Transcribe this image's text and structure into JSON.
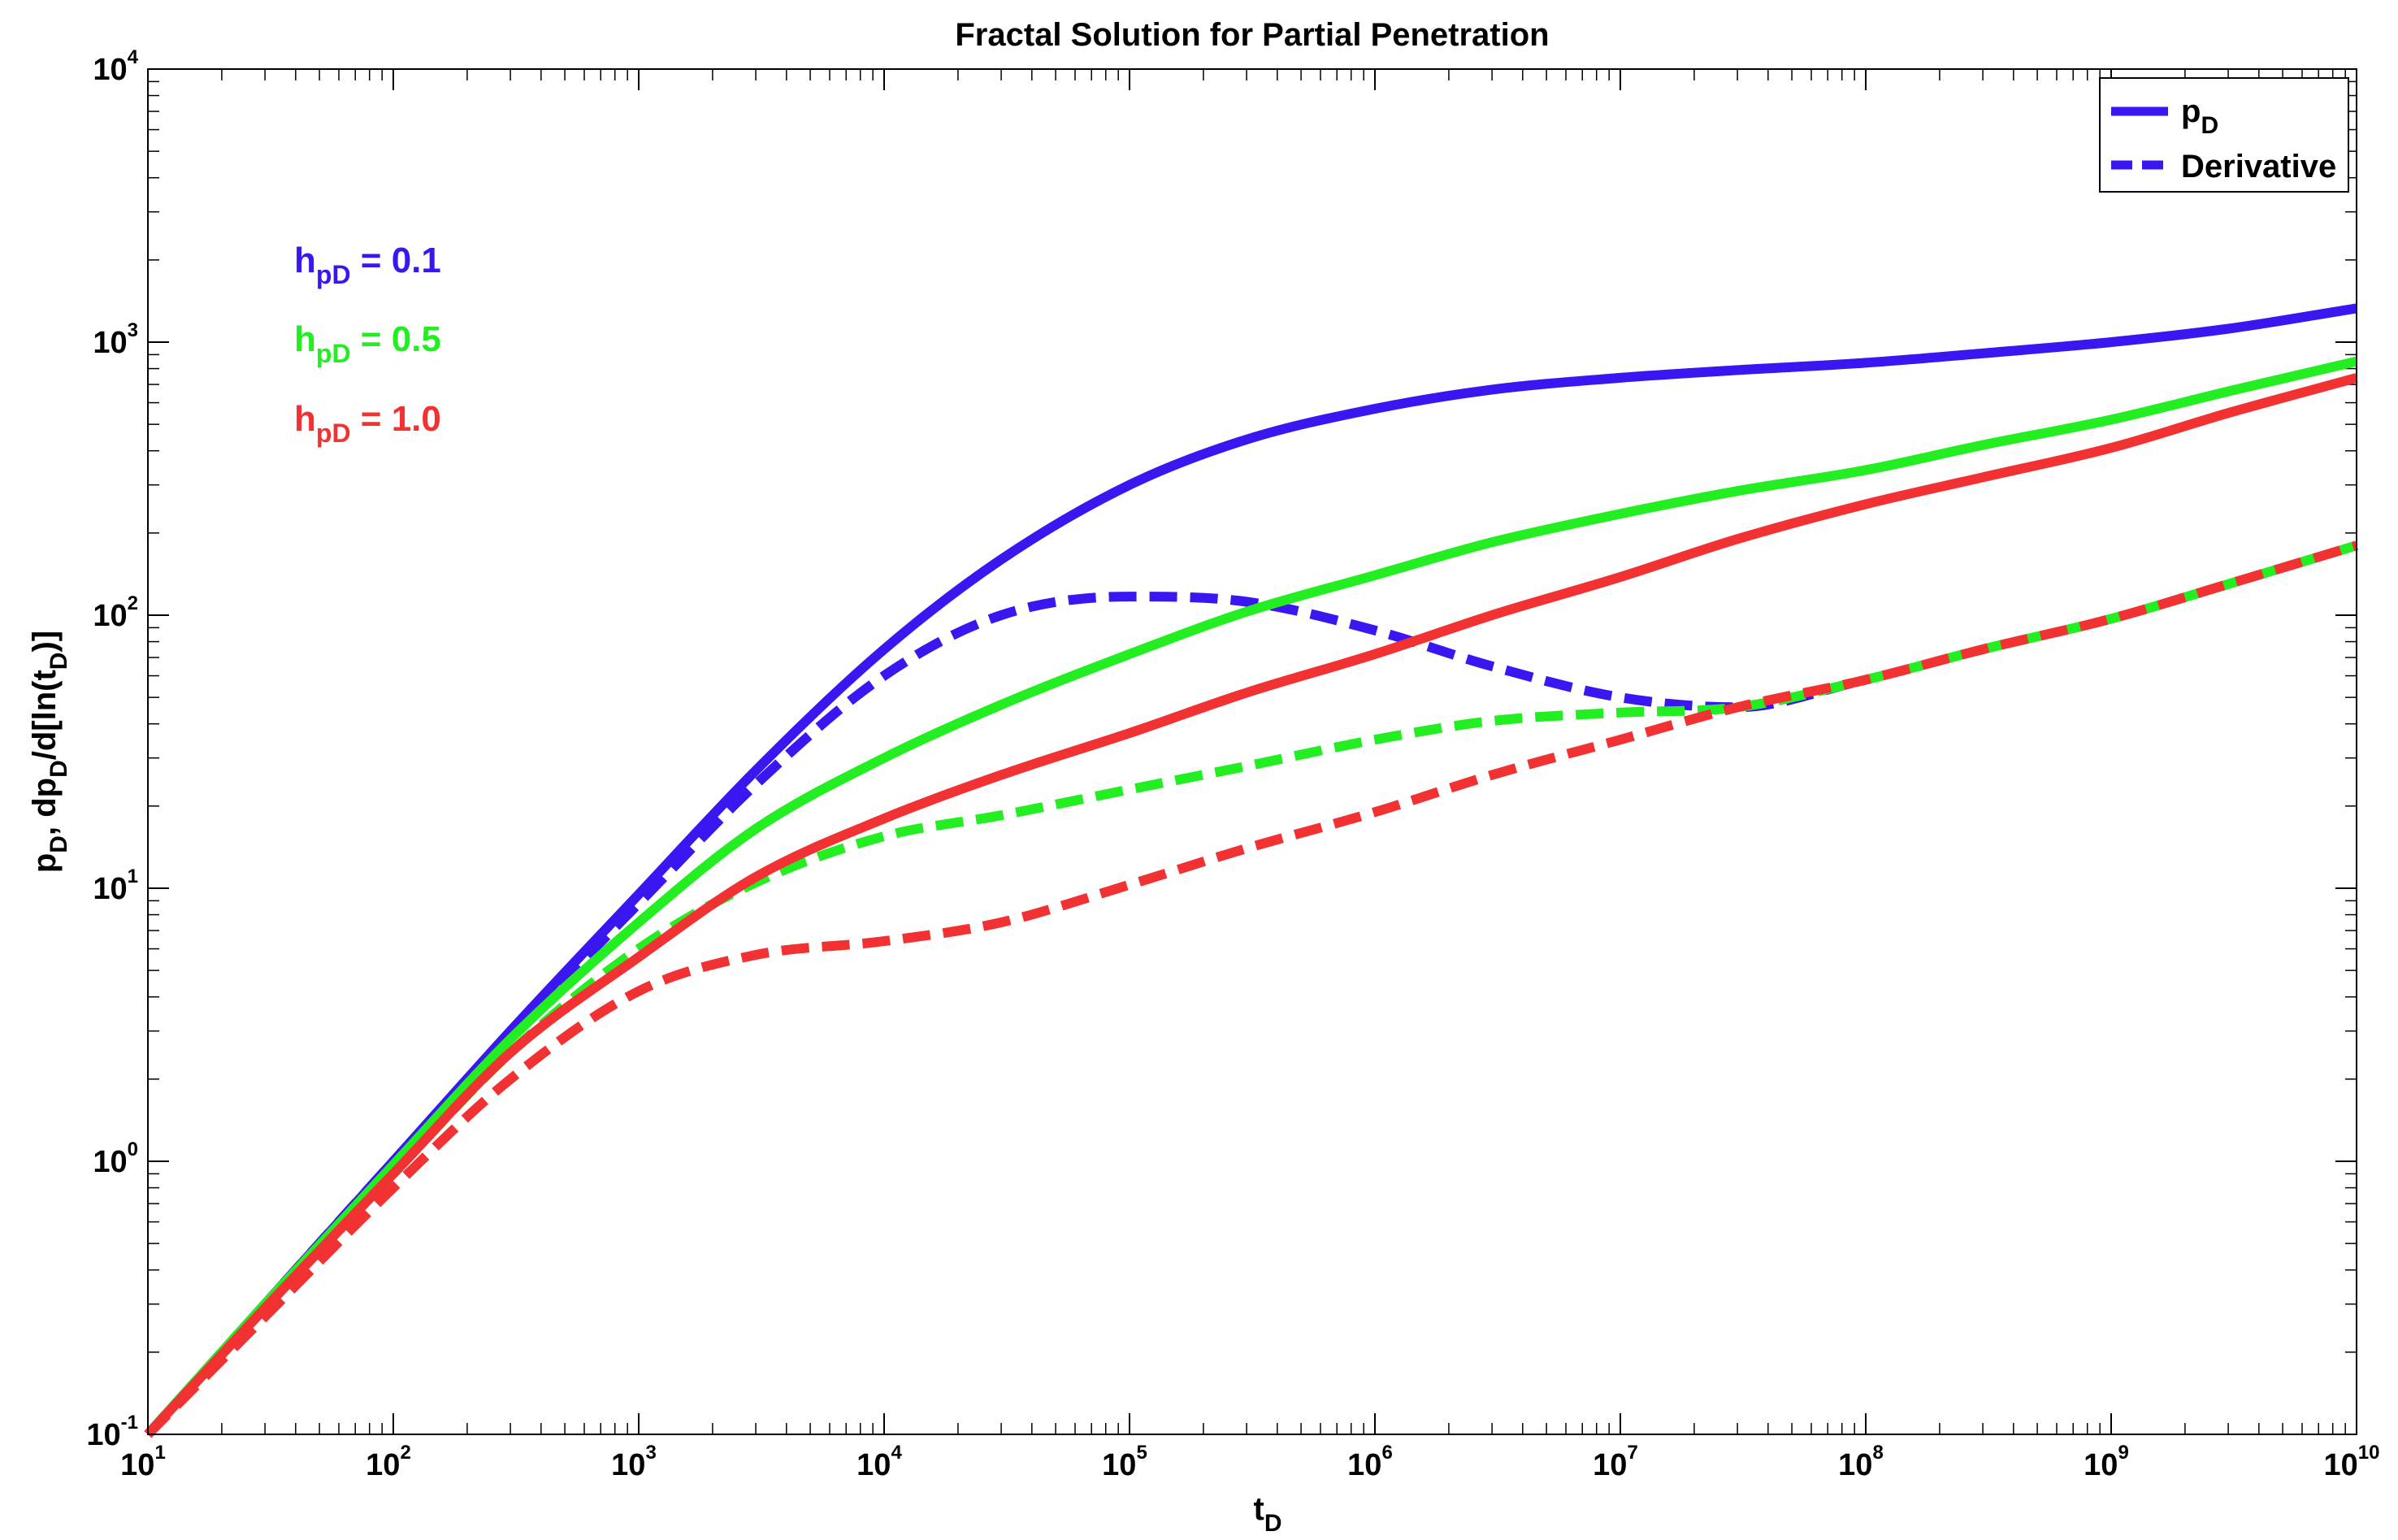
{
  "chart_data": {
    "type": "line",
    "title": "Fractal Solution for Partial Penetration",
    "xlabel": {
      "main": "t",
      "sub": "D"
    },
    "ylabel": {
      "p1": "p",
      "s1": "D",
      "p2": ", dp",
      "s2": "D",
      "p3": "/d[ln(t",
      "s3": "D",
      "p4": ")]"
    },
    "x_scale": "log",
    "y_scale": "log",
    "xlim": [
      10,
      10000000000
    ],
    "ylim": [
      0.1,
      10000
    ],
    "grid": false,
    "legend_position": "top-right",
    "x_ticks": [
      {
        "base": "10",
        "exp": "1",
        "value": 10
      },
      {
        "base": "10",
        "exp": "2",
        "value": 100
      },
      {
        "base": "10",
        "exp": "3",
        "value": 1000
      },
      {
        "base": "10",
        "exp": "4",
        "value": 10000
      },
      {
        "base": "10",
        "exp": "5",
        "value": 100000
      },
      {
        "base": "10",
        "exp": "6",
        "value": 1000000
      },
      {
        "base": "10",
        "exp": "7",
        "value": 10000000
      },
      {
        "base": "10",
        "exp": "8",
        "value": 100000000
      },
      {
        "base": "10",
        "exp": "9",
        "value": 1000000000
      },
      {
        "base": "10",
        "exp": "10",
        "value": 10000000000
      }
    ],
    "y_ticks": [
      {
        "base": "10",
        "exp": "-1",
        "value": 0.1
      },
      {
        "base": "10",
        "exp": "0",
        "value": 1
      },
      {
        "base": "10",
        "exp": "1",
        "value": 10
      },
      {
        "base": "10",
        "exp": "2",
        "value": 100
      },
      {
        "base": "10",
        "exp": "3",
        "value": 1000
      },
      {
        "base": "10",
        "exp": "4",
        "value": 10000
      }
    ],
    "legend": [
      {
        "main": "p",
        "sub": "D",
        "style": "solid",
        "color": "#3a16f0"
      },
      {
        "main": "Derivative",
        "sub": "",
        "style": "dashed",
        "color": "#3a16f0"
      }
    ],
    "annotations": [
      {
        "main": "h",
        "sub": "pD",
        "rest": " = 0.1",
        "color": "#3a16f0"
      },
      {
        "main": "h",
        "sub": "pD",
        "rest": " = 0.5",
        "color": "#22ee22"
      },
      {
        "main": "h",
        "sub": "pD",
        "rest": " = 1.0",
        "color": "#f23232"
      }
    ],
    "series": [
      {
        "group": "h_pD = 0.1",
        "kind": "pD",
        "color": "#3a16f0",
        "style": "solid",
        "x": [
          10,
          30,
          100,
          300,
          1000,
          3000,
          10000,
          30000,
          100000,
          300000,
          1000000,
          3000000,
          10000000,
          30000000,
          100000000,
          300000000,
          1000000000,
          3000000000,
          10000000000
        ],
        "y": [
          0.1,
          0.3,
          1.0,
          3.0,
          9.5,
          27,
          75,
          160,
          300,
          440,
          570,
          670,
          740,
          790,
          840,
          910,
          1000,
          1120,
          1330
        ]
      },
      {
        "group": "h_pD = 0.1",
        "kind": "derivative",
        "color": "#3a16f0",
        "style": "dashed",
        "x": [
          10,
          30,
          100,
          300,
          1000,
          3000,
          10000,
          30000,
          100000,
          300000,
          1000000,
          3000000,
          10000000,
          30000000,
          100000000
        ],
        "y": [
          0.1,
          0.3,
          1.0,
          2.9,
          8.8,
          24,
          60,
          100,
          117,
          112,
          88,
          65,
          50,
          46,
          58
        ]
      },
      {
        "group": "h_pD = 0.5",
        "kind": "pD",
        "color": "#22ee22",
        "style": "solid",
        "x": [
          10,
          30,
          100,
          300,
          1000,
          3000,
          10000,
          30000,
          100000,
          300000,
          1000000,
          3000000,
          10000000,
          30000000,
          100000000,
          300000000,
          1000000000,
          3000000000,
          10000000000
        ],
        "y": [
          0.1,
          0.3,
          0.97,
          2.8,
          7.5,
          16.5,
          30,
          47,
          72,
          103,
          140,
          185,
          235,
          285,
          340,
          420,
          520,
          660,
          850
        ]
      },
      {
        "group": "h_pD = 0.5",
        "kind": "derivative",
        "color": "#22ee22",
        "style": "dashed",
        "x": [
          10,
          30,
          100,
          300,
          1000,
          3000,
          10000,
          30000,
          100000,
          300000,
          1000000,
          3000000,
          10000000,
          30000000,
          100000000,
          300000000,
          1000000000,
          3000000000,
          10000000000
        ],
        "y": [
          0.1,
          0.29,
          0.9,
          2.5,
          6.0,
          10.5,
          15.5,
          18.5,
          23,
          28,
          35,
          41,
          44,
          46,
          58,
          75,
          97,
          130,
          180
        ]
      },
      {
        "group": "h_pD = 1.0",
        "kind": "pD",
        "color": "#f23232",
        "style": "solid",
        "x": [
          10,
          30,
          100,
          300,
          1000,
          3000,
          10000,
          30000,
          100000,
          300000,
          1000000,
          3000000,
          10000000,
          30000000,
          100000000,
          300000000,
          1000000000,
          3000000000,
          10000000000
        ],
        "y": [
          0.1,
          0.29,
          0.9,
          2.5,
          5.6,
          11,
          18,
          26,
          37,
          52,
          72,
          100,
          138,
          190,
          255,
          320,
          410,
          550,
          740
        ]
      },
      {
        "group": "h_pD = 1.0",
        "kind": "derivative",
        "color": "#f23232",
        "style": "dashed",
        "x": [
          10,
          30,
          100,
          300,
          1000,
          3000,
          10000,
          30000,
          100000,
          300000,
          1000000,
          3000000,
          10000000,
          30000000,
          100000000,
          300000000,
          1000000000,
          3000000000,
          10000000000
        ],
        "y": [
          0.1,
          0.27,
          0.8,
          2.0,
          4.2,
          5.7,
          6.4,
          7.5,
          10.3,
          14,
          19,
          26,
          35,
          46,
          58,
          75,
          97,
          130,
          180
        ]
      }
    ]
  }
}
